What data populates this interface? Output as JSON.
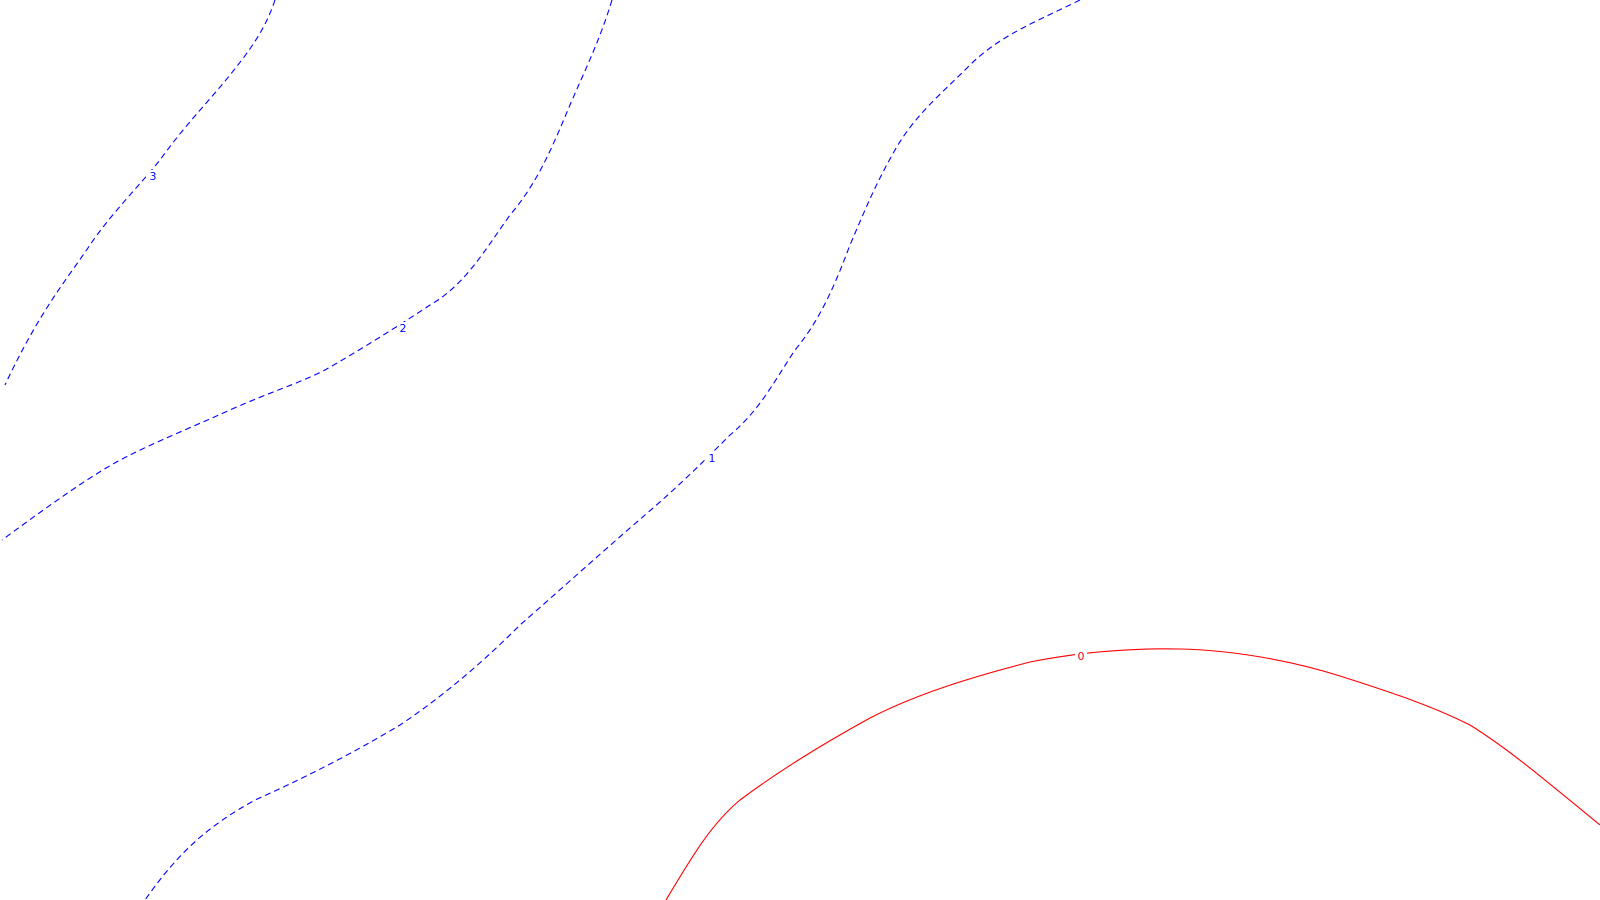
{
  "map": {
    "background_color": "#ffffff",
    "contours": [
      {
        "level": 3,
        "label": "3",
        "color": "#0000ff",
        "style": "dashed"
      },
      {
        "level": 2,
        "label": "2",
        "color": "#0000ff",
        "style": "dashed"
      },
      {
        "level": 1,
        "label": "1",
        "color": "#0000ff",
        "style": "dashed"
      },
      {
        "level": 0,
        "label": "0",
        "color": "#ff0000",
        "style": "solid"
      }
    ]
  }
}
